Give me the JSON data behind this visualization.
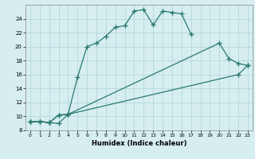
{
  "xlabel": "Humidex (Indice chaleur)",
  "bg_color": "#d6eef0",
  "grid_color": "#aed4d8",
  "line_color": "#2a7a6e",
  "xlim": [
    -0.5,
    23.5
  ],
  "ylim": [
    8,
    26
  ],
  "xticks": [
    0,
    1,
    2,
    3,
    4,
    5,
    6,
    7,
    8,
    9,
    10,
    11,
    12,
    13,
    14,
    15,
    16,
    17,
    18,
    19,
    20,
    21,
    22,
    23
  ],
  "yticks": [
    8,
    10,
    12,
    14,
    16,
    18,
    20,
    22,
    24
  ],
  "line1_x": [
    0,
    1,
    2,
    3,
    4,
    5,
    6,
    7,
    8,
    9,
    10,
    11,
    12,
    13,
    14,
    15,
    16,
    17
  ],
  "line1_y": [
    9.2,
    9.3,
    9.1,
    9.0,
    10.3,
    15.6,
    20.0,
    20.5,
    21.5,
    22.8,
    23.0,
    25.1,
    25.3,
    23.1,
    25.1,
    24.9,
    24.7,
    21.8
  ],
  "line2_x": [
    0,
    1,
    2,
    3,
    4,
    20,
    21,
    22,
    23
  ],
  "line2_y": [
    9.2,
    9.3,
    9.1,
    10.2,
    10.3,
    20.5,
    18.3,
    17.6,
    17.3
  ],
  "line3_x": [
    0,
    1,
    2,
    3,
    4,
    22,
    23
  ],
  "line3_y": [
    9.2,
    9.3,
    9.1,
    10.2,
    10.3,
    16.0,
    17.3
  ]
}
